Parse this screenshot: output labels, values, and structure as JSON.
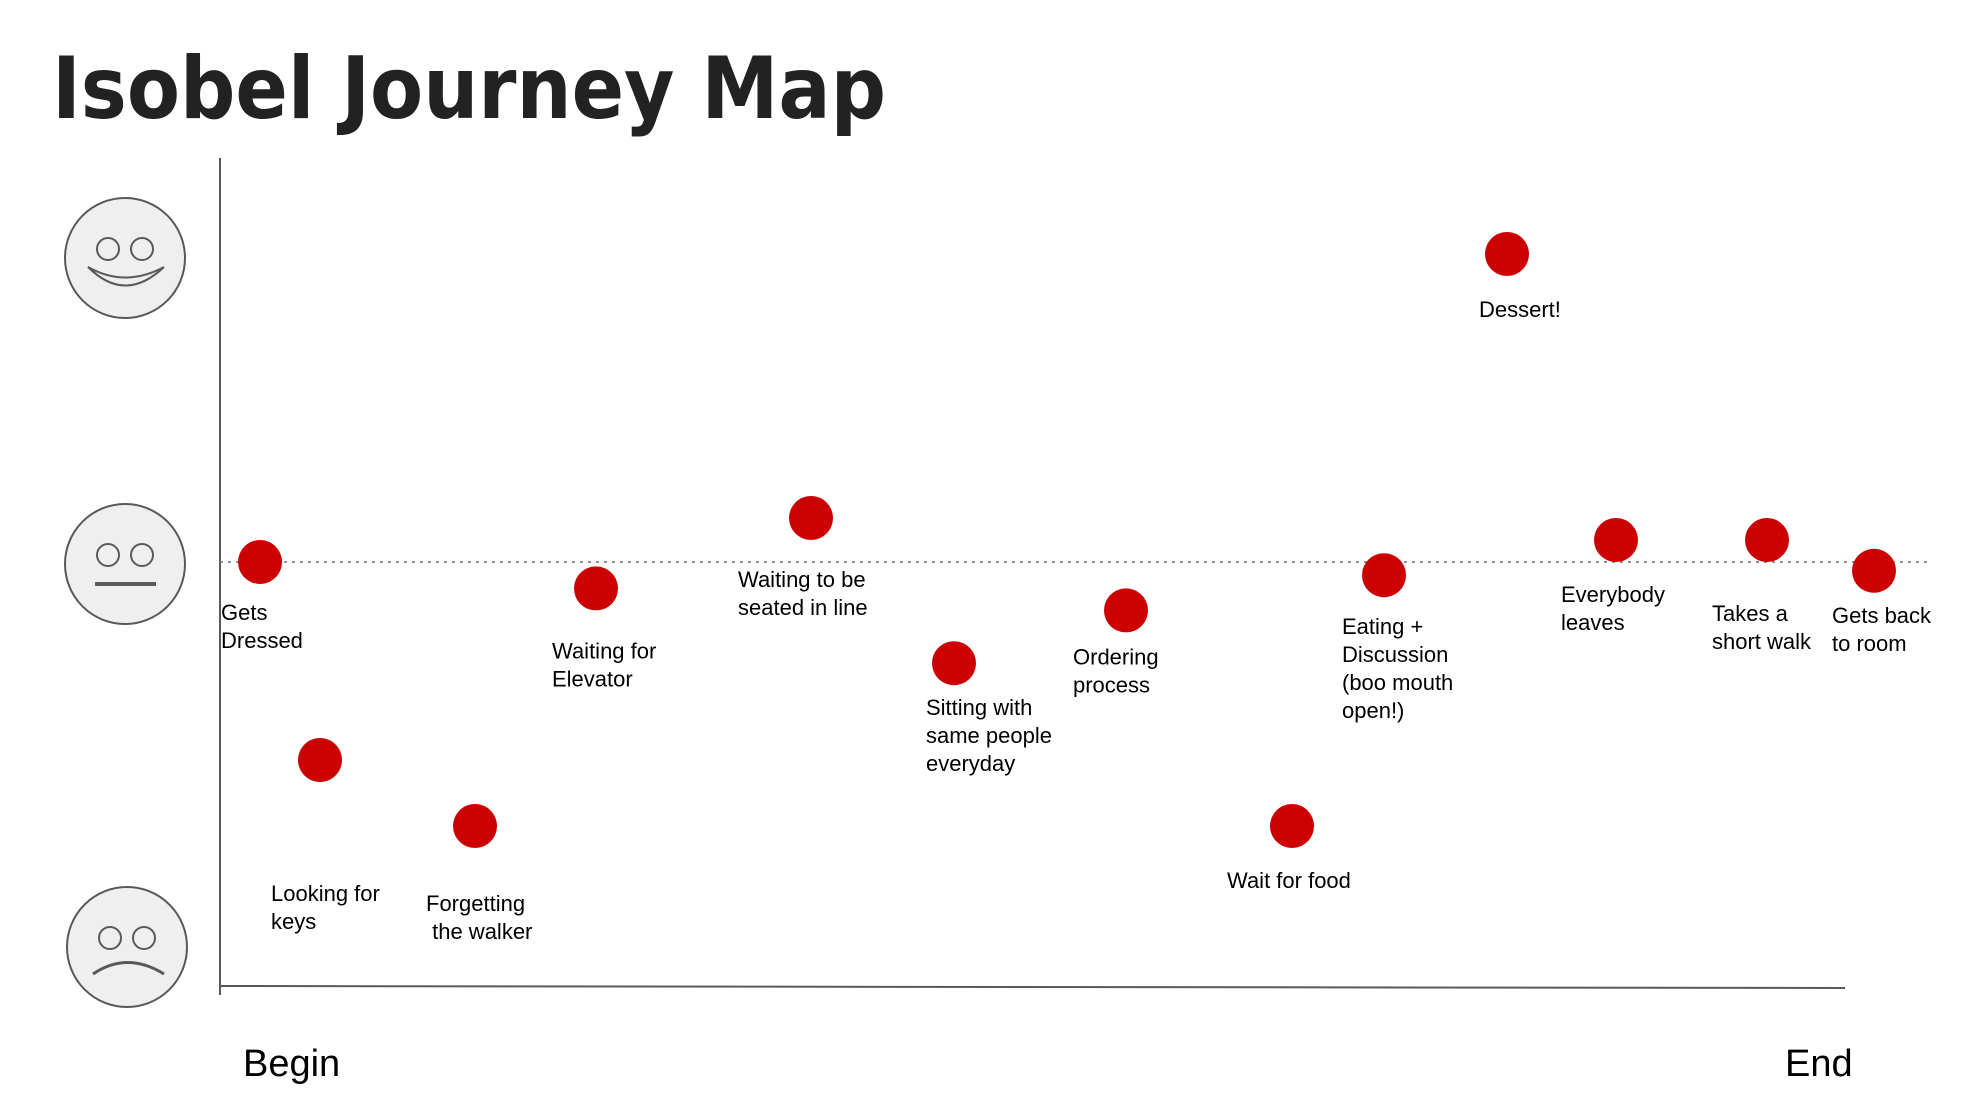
{
  "title": "Isobel Journey Map",
  "x_axis": {
    "start_label": "Begin",
    "end_label": "End"
  },
  "y_axis_faces": [
    {
      "name": "happy-face-icon",
      "level": "positive"
    },
    {
      "name": "neutral-face-icon",
      "level": "neutral"
    },
    {
      "name": "sad-face-icon",
      "level": "negative"
    }
  ],
  "colors": {
    "dot": "#cc0000",
    "face_fill": "#efefef",
    "face_stroke": "#595959",
    "axis": "#595959",
    "baseline": "#808080"
  },
  "chart_data": {
    "type": "scatter",
    "xlabel": "",
    "ylabel": "",
    "neutral_line": "dotted",
    "points": [
      {
        "label_lines": [
          "Gets",
          "Dressed"
        ],
        "x": 1,
        "y": 0.0
      },
      {
        "label_lines": [
          "Looking for",
          "keys"
        ],
        "x": 2,
        "y": -0.45
      },
      {
        "label_lines": [
          "Forgetting",
          " the walker"
        ],
        "x": 3,
        "y": -0.6
      },
      {
        "label_lines": [
          "Waiting for",
          "Elevator"
        ],
        "x": 4,
        "y": -0.06
      },
      {
        "label_lines": [
          "Waiting to be",
          "seated in line"
        ],
        "x": 5,
        "y": 0.1
      },
      {
        "label_lines": [
          "Sitting with",
          "same people",
          "everyday"
        ],
        "x": 6,
        "y": -0.23
      },
      {
        "label_lines": [
          "Ordering",
          "process"
        ],
        "x": 7,
        "y": -0.11
      },
      {
        "label_lines": [
          "Wait for food"
        ],
        "x": 8,
        "y": -0.6
      },
      {
        "label_lines": [
          "Eating +",
          "Discussion",
          "(boo mouth",
          "open!)"
        ],
        "x": 9,
        "y": -0.03
      },
      {
        "label_lines": [
          "Dessert!"
        ],
        "x": 10,
        "y": 0.7
      },
      {
        "label_lines": [
          "Everybody",
          "leaves"
        ],
        "x": 11,
        "y": 0.05
      },
      {
        "label_lines": [
          "Takes a",
          "short walk"
        ],
        "x": 12,
        "y": 0.05
      },
      {
        "label_lines": [
          "Gets back",
          "to room"
        ],
        "x": 13,
        "y": -0.02
      }
    ]
  }
}
